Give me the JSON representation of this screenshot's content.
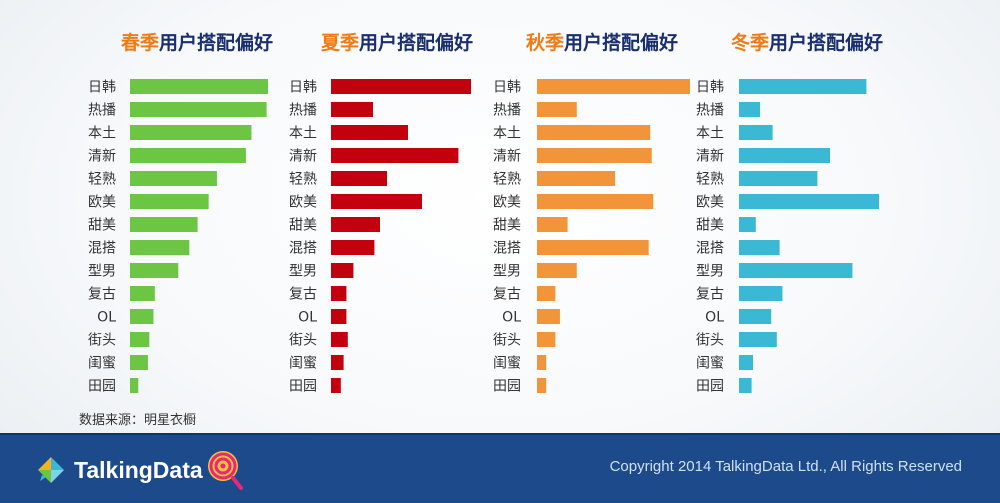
{
  "panels": [
    {
      "season": "春季",
      "suffix": "用户搭配偏好"
    },
    {
      "season": "夏季",
      "suffix": "用户搭配偏好"
    },
    {
      "season": "秋季",
      "suffix": "用户搭配偏好"
    },
    {
      "season": "冬季",
      "suffix": "用户搭配偏好"
    }
  ],
  "source": "数据来源：明星衣橱",
  "footer": {
    "brand": "TalkingData",
    "copyright": "Copyright 2014 TalkingData Ltd., All Rights Reserved"
  },
  "chart_data": [
    {
      "type": "bar",
      "orientation": "horizontal",
      "title": "春季用户搭配偏好",
      "color": "#6cc644",
      "bar_direction": "left-to-right",
      "categories": [
        "日韩",
        "热播",
        "本土",
        "清新",
        "轻熟",
        "欧美",
        "甜美",
        "混搭",
        "型男",
        "复古",
        "OL",
        "街头",
        "闺蜜",
        "田园"
      ],
      "values": [
        100,
        99,
        88,
        84,
        63,
        57,
        49,
        43,
        35,
        18,
        17,
        14,
        13,
        6
      ],
      "xlim": [
        0,
        100
      ]
    },
    {
      "type": "bar",
      "orientation": "horizontal",
      "title": "夏季用户搭配偏好",
      "color": "#c2000e",
      "bar_direction": "left-to-right",
      "categories": [
        "日韩",
        "热播",
        "本土",
        "清新",
        "轻熟",
        "欧美",
        "甜美",
        "混搭",
        "型男",
        "复古",
        "OL",
        "街头",
        "闺蜜",
        "田园"
      ],
      "values": [
        100,
        30,
        55,
        91,
        40,
        65,
        35,
        31,
        16,
        11,
        11,
        12,
        9,
        7
      ],
      "xlim": [
        0,
        100
      ]
    },
    {
      "type": "bar",
      "orientation": "horizontal",
      "title": "秋季用户搭配偏好",
      "color": "#f2953a",
      "bar_direction": "left-to-right",
      "categories": [
        "日韩",
        "热播",
        "本土",
        "清新",
        "轻熟",
        "欧美",
        "甜美",
        "混搭",
        "型男",
        "复古",
        "OL",
        "街头",
        "闺蜜",
        "田园"
      ],
      "values": [
        100,
        26,
        74,
        75,
        51,
        76,
        20,
        73,
        26,
        12,
        15,
        12,
        6,
        6
      ],
      "xlim": [
        0,
        100
      ]
    },
    {
      "type": "bar",
      "orientation": "horizontal",
      "title": "冬季用户搭配偏好",
      "color": "#3ab8d4",
      "bar_direction": "left-to-right",
      "categories": [
        "日韩",
        "热播",
        "本土",
        "清新",
        "轻熟",
        "欧美",
        "甜美",
        "混搭",
        "型男",
        "复古",
        "OL",
        "街头",
        "闺蜜",
        "田园"
      ],
      "values": [
        91,
        15,
        24,
        65,
        56,
        100,
        12,
        29,
        81,
        31,
        23,
        27,
        10,
        9
      ],
      "xlim": [
        0,
        100
      ]
    }
  ]
}
